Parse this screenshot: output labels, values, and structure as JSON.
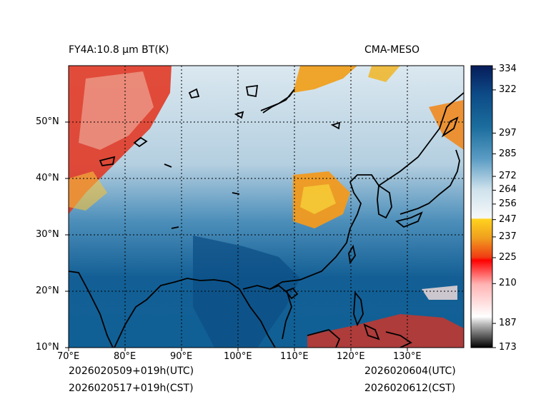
{
  "header": {
    "title_left": "FY4A:10.8 μm BT(K)",
    "title_right": "CMA-MESO"
  },
  "footer": {
    "init_utc": "2026020509+019h(UTC)",
    "init_cst": "2026020517+019h(CST)",
    "valid_utc": "2026020604(UTC)",
    "valid_cst": "2026020612(CST)"
  },
  "map": {
    "lon_range": [
      70,
      140
    ],
    "lat_range": [
      10,
      60
    ],
    "lon_ticks": [
      "70°E",
      "80°E",
      "90°E",
      "100°E",
      "110°E",
      "120°E",
      "130°E"
    ],
    "lat_ticks": [
      "10°N",
      "20°N",
      "30°N",
      "40°N",
      "50°N"
    ]
  },
  "colorbar": {
    "min": 173,
    "max": 336,
    "tick_values": [
      173,
      187,
      210,
      225,
      237,
      247,
      256,
      264,
      272,
      285,
      297,
      322,
      334
    ],
    "tick_labels": [
      "173",
      "187",
      "210",
      "225",
      "237",
      "247",
      "256",
      "264",
      "272",
      "285",
      "297",
      "322",
      "334"
    ]
  },
  "colors": {
    "cold_cloud": "#e8321e",
    "mid_cloud": "#f7c21e",
    "clear_warm": "#0e5f93",
    "coast": "#000000"
  }
}
